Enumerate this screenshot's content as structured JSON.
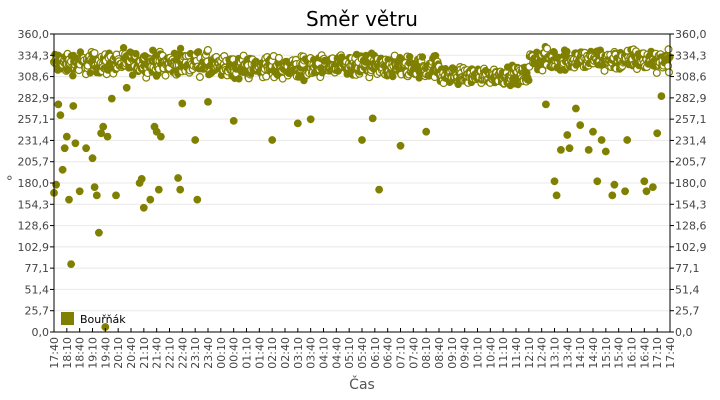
{
  "chart_data": {
    "type": "scatter",
    "title": "Směr větru",
    "xlabel": "Čas",
    "ylabel": "°",
    "ylim": [
      0,
      360
    ],
    "y_ticks": [
      "0,0",
      "25,7",
      "51,4",
      "77,1",
      "102,9",
      "128,6",
      "154,3",
      "180,0",
      "205,7",
      "231,4",
      "257,1",
      "282,9",
      "308,6",
      "334,3",
      "360,0"
    ],
    "x_ticks": [
      "17:40",
      "18:10",
      "18:40",
      "19:10",
      "19:40",
      "20:10",
      "20:40",
      "21:10",
      "21:40",
      "22:10",
      "22:40",
      "23:10",
      "23:40",
      "00:10",
      "00:40",
      "01:10",
      "01:40",
      "02:10",
      "02:40",
      "03:10",
      "03:40",
      "04:10",
      "04:40",
      "05:10",
      "05:40",
      "06:10",
      "06:40",
      "07:10",
      "07:40",
      "08:10",
      "08:40",
      "09:10",
      "09:40",
      "10:10",
      "10:40",
      "11:10",
      "11:40",
      "12:10",
      "12:40",
      "13:10",
      "13:40",
      "14:10",
      "14:40",
      "15:10",
      "15:40",
      "16:10",
      "16:40",
      "17:10",
      "17:40"
    ],
    "grid": true,
    "legend_position": "inside-bottom-left",
    "series": [
      {
        "name": "Bouřňák",
        "color": "#808000",
        "description": "Dense band of points mostly between ~300° and ~345° across the whole 24h, with scattered lower outliers concentrated 17:40–23:40 and 12:40–17:40",
        "band": [
          {
            "x_from": "17:40",
            "x_to": "23:40",
            "low": 305,
            "high": 345
          },
          {
            "x_from": "23:40",
            "x_to": "08:40",
            "low": 300,
            "high": 340
          },
          {
            "x_from": "08:40",
            "x_to": "12:10",
            "low": 295,
            "high": 325
          },
          {
            "x_from": "12:10",
            "x_to": "17:40",
            "low": 310,
            "high": 348
          }
        ],
        "outliers": [
          {
            "x": "17:40",
            "y": 168
          },
          {
            "x": "17:45",
            "y": 178
          },
          {
            "x": "17:50",
            "y": 275
          },
          {
            "x": "17:55",
            "y": 262
          },
          {
            "x": "18:00",
            "y": 196
          },
          {
            "x": "18:05",
            "y": 222
          },
          {
            "x": "18:10",
            "y": 236
          },
          {
            "x": "18:15",
            "y": 160
          },
          {
            "x": "18:20",
            "y": 82
          },
          {
            "x": "18:25",
            "y": 273
          },
          {
            "x": "18:30",
            "y": 228
          },
          {
            "x": "18:40",
            "y": 170
          },
          {
            "x": "18:55",
            "y": 222
          },
          {
            "x": "19:10",
            "y": 210
          },
          {
            "x": "19:15",
            "y": 175
          },
          {
            "x": "19:20",
            "y": 165
          },
          {
            "x": "19:25",
            "y": 120
          },
          {
            "x": "19:30",
            "y": 240
          },
          {
            "x": "19:35",
            "y": 248
          },
          {
            "x": "19:40",
            "y": 6
          },
          {
            "x": "19:45",
            "y": 236
          },
          {
            "x": "19:55",
            "y": 282
          },
          {
            "x": "20:05",
            "y": 165
          },
          {
            "x": "20:30",
            "y": 295
          },
          {
            "x": "21:00",
            "y": 180
          },
          {
            "x": "21:05",
            "y": 185
          },
          {
            "x": "21:10",
            "y": 150
          },
          {
            "x": "21:25",
            "y": 160
          },
          {
            "x": "21:35",
            "y": 248
          },
          {
            "x": "21:40",
            "y": 242
          },
          {
            "x": "21:45",
            "y": 172
          },
          {
            "x": "21:50",
            "y": 236
          },
          {
            "x": "22:30",
            "y": 186
          },
          {
            "x": "22:35",
            "y": 172
          },
          {
            "x": "22:40",
            "y": 276
          },
          {
            "x": "23:10",
            "y": 232
          },
          {
            "x": "23:15",
            "y": 160
          },
          {
            "x": "23:40",
            "y": 278
          },
          {
            "x": "00:40",
            "y": 255
          },
          {
            "x": "02:10",
            "y": 232
          },
          {
            "x": "03:10",
            "y": 252
          },
          {
            "x": "03:40",
            "y": 257
          },
          {
            "x": "05:40",
            "y": 232
          },
          {
            "x": "06:05",
            "y": 258
          },
          {
            "x": "06:20",
            "y": 172
          },
          {
            "x": "07:10",
            "y": 225
          },
          {
            "x": "08:10",
            "y": 242
          },
          {
            "x": "12:50",
            "y": 275
          },
          {
            "x": "13:10",
            "y": 182
          },
          {
            "x": "13:15",
            "y": 165
          },
          {
            "x": "13:25",
            "y": 220
          },
          {
            "x": "13:40",
            "y": 238
          },
          {
            "x": "13:45",
            "y": 222
          },
          {
            "x": "14:00",
            "y": 270
          },
          {
            "x": "14:10",
            "y": 250
          },
          {
            "x": "14:30",
            "y": 220
          },
          {
            "x": "14:40",
            "y": 242
          },
          {
            "x": "14:50",
            "y": 182
          },
          {
            "x": "15:00",
            "y": 232
          },
          {
            "x": "15:10",
            "y": 218
          },
          {
            "x": "15:25",
            "y": 165
          },
          {
            "x": "15:30",
            "y": 178
          },
          {
            "x": "15:55",
            "y": 170
          },
          {
            "x": "16:00",
            "y": 232
          },
          {
            "x": "16:40",
            "y": 182
          },
          {
            "x": "16:45",
            "y": 170
          },
          {
            "x": "17:00",
            "y": 175
          },
          {
            "x": "17:10",
            "y": 240
          },
          {
            "x": "17:20",
            "y": 285
          }
        ]
      }
    ]
  }
}
